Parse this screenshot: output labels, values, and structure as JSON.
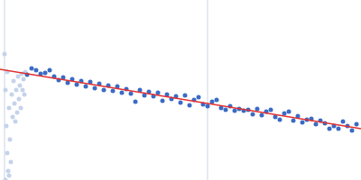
{
  "chart_data": {
    "type": "scatter",
    "xlim": [
      0,
      400
    ],
    "ylim": [
      0,
      200
    ],
    "tick_labels": false,
    "grid": false,
    "vertical_lines": [
      5,
      230
    ],
    "series": [
      {
        "type": "scatter",
        "marker": "circle",
        "color": "#c5d3ea",
        "x": [
          5,
          6,
          7,
          8,
          9,
          10,
          11,
          12,
          13,
          14,
          15,
          16,
          17,
          18,
          19,
          20,
          21,
          22,
          23,
          24,
          25,
          26,
          27,
          28,
          6,
          8,
          10
        ],
        "values": [
          140,
          100,
          60,
          30,
          10,
          80,
          45,
          20,
          95,
          70,
          110,
          85,
          65,
          100,
          75,
          115,
          90,
          105,
          80,
          118,
          100,
          112,
          95,
          120,
          0,
          120,
          5
        ]
      },
      {
        "type": "scatter",
        "marker": "circle",
        "color": "#3b6bc4",
        "x": [
          30,
          35,
          40,
          45,
          50,
          55,
          60,
          65,
          70,
          75,
          80,
          85,
          90,
          95,
          100,
          105,
          110,
          115,
          120,
          125,
          130,
          135,
          140,
          145,
          150,
          155,
          160,
          165,
          170,
          175,
          180,
          185,
          190,
          195,
          200,
          205,
          210,
          215,
          220,
          225,
          230,
          235,
          240,
          245,
          250,
          255,
          260,
          265,
          270,
          275,
          280,
          285,
          290,
          295,
          300,
          305,
          310,
          315,
          320,
          325,
          330,
          335,
          340,
          345,
          350,
          355,
          360,
          365,
          370,
          375,
          380,
          385,
          390,
          395
        ],
        "values": [
          117,
          124,
          122,
          118,
          119,
          122,
          115,
          111,
          114,
          108,
          112,
          106,
          110,
          104,
          109,
          102,
          107,
          100,
          105,
          99,
          104,
          97,
          101,
          96,
          87,
          100,
          94,
          98,
          93,
          97,
          88,
          95,
          90,
          93,
          86,
          94,
          83,
          89,
          92,
          84,
          82,
          87,
          89,
          80,
          78,
          82,
          77,
          79,
          77,
          78,
          73,
          79,
          72,
          76,
          78,
          70,
          67,
          74,
          76,
          66,
          71,
          64,
          67,
          68,
          62,
          66,
          63,
          57,
          60,
          57,
          65,
          60,
          55,
          62
        ]
      },
      {
        "type": "line",
        "line_style": "solid",
        "color": "#e03030",
        "x": [
          0,
          400
        ],
        "values": [
          123,
          57
        ]
      }
    ]
  }
}
